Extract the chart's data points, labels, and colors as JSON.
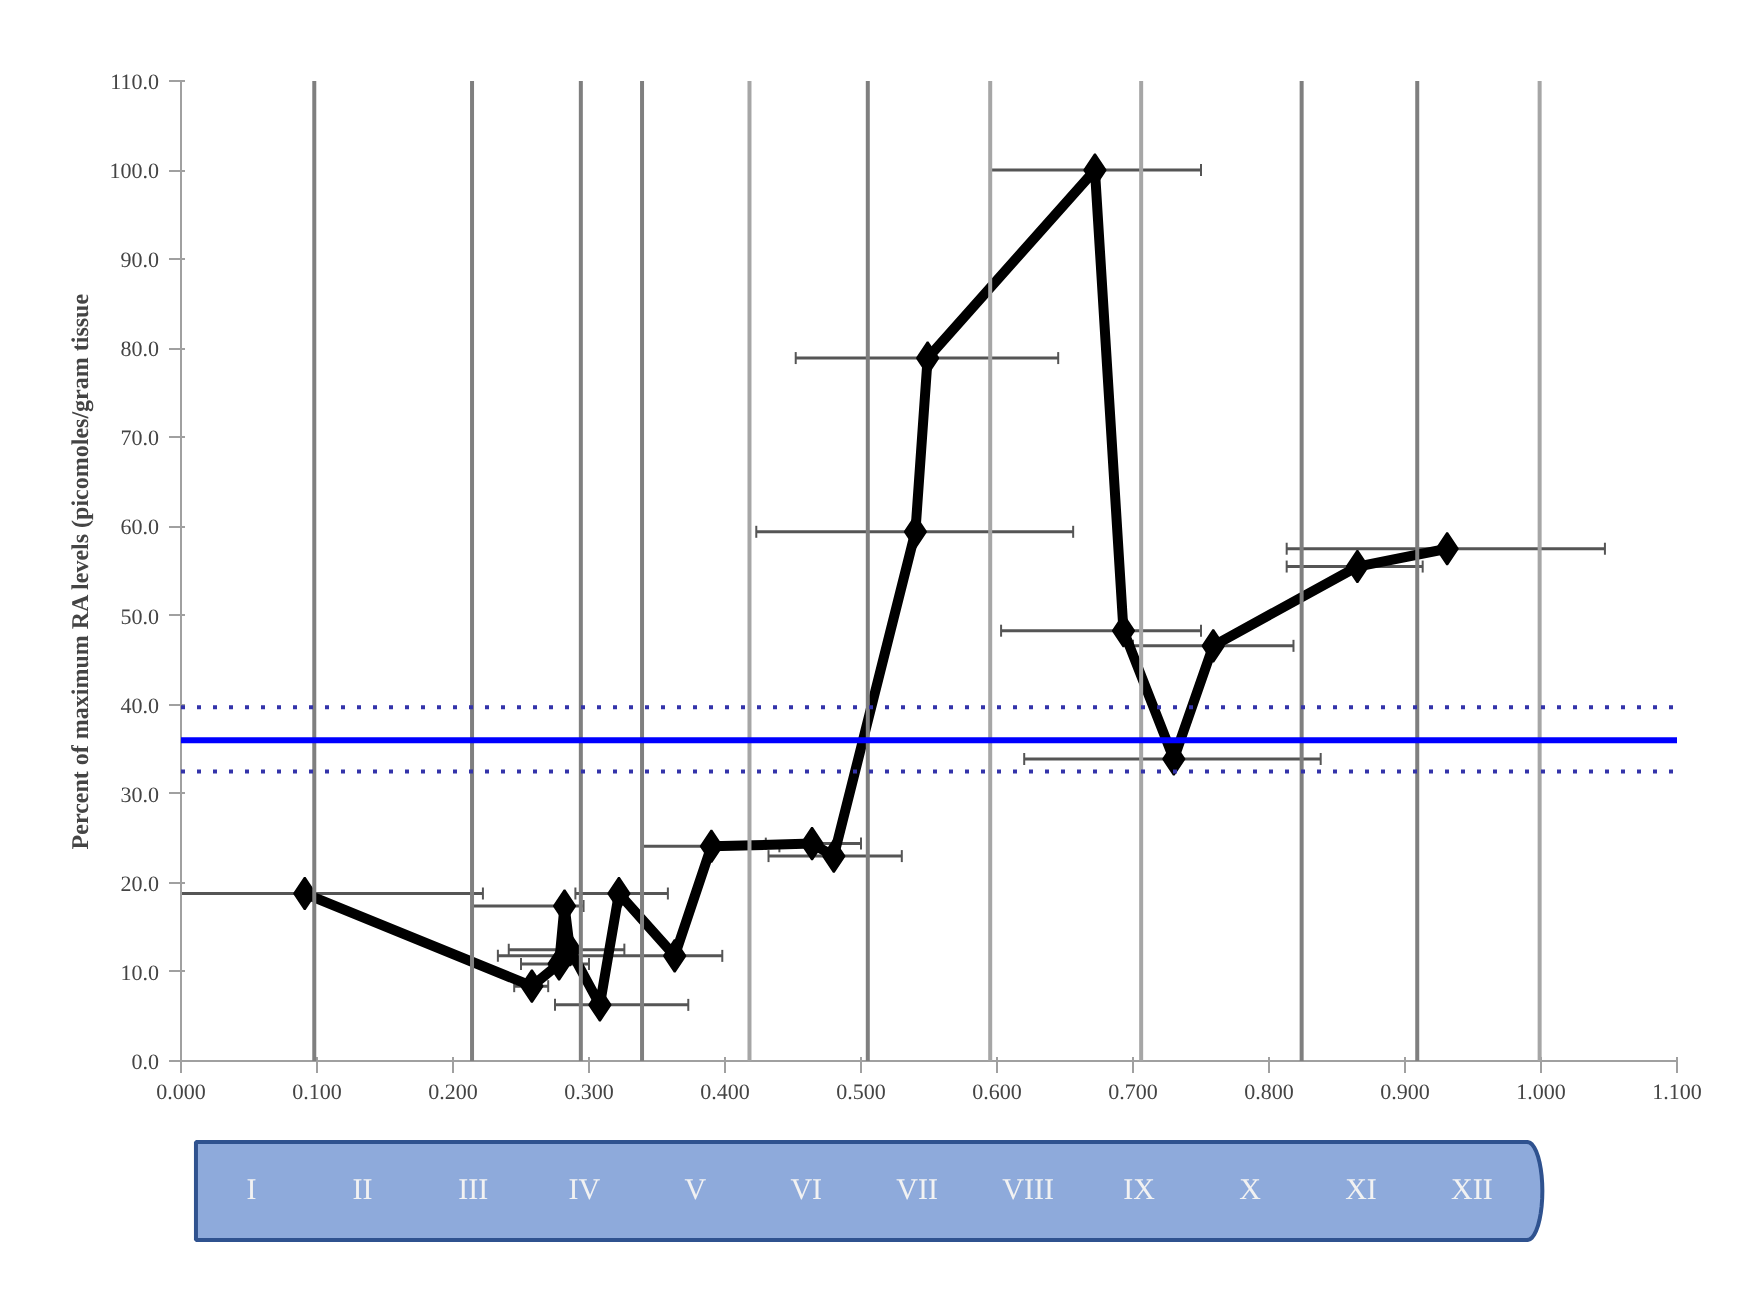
{
  "chart_data": {
    "type": "line",
    "ylabel": "Percent of maximum RA levels (picomoles/gram tissue",
    "x": [
      0.091,
      0.258,
      0.278,
      0.282,
      0.286,
      0.308,
      0.322,
      0.363,
      0.39,
      0.464,
      0.48,
      0.54,
      0.549,
      0.672,
      0.693,
      0.73,
      0.759,
      0.865,
      0.931
    ],
    "series": [
      {
        "color": "#000000",
        "values": [
          18.8,
          8.4,
          10.9,
          17.4,
          12.5,
          6.3,
          18.8,
          11.8,
          24.1,
          24.4,
          23.0,
          59.4,
          78.9,
          100.0,
          48.3,
          33.9,
          46.6,
          55.5,
          57.5
        ],
        "xerrors": [
          [
            0.0,
            0.222
          ],
          [
            0.245,
            0.27
          ],
          [
            0.25,
            0.3
          ],
          [
            0.214,
            0.296
          ],
          [
            0.241,
            0.326
          ],
          [
            0.275,
            0.373
          ],
          [
            0.29,
            0.358
          ],
          [
            0.233,
            0.398
          ],
          [
            0.339,
            0.44
          ],
          [
            0.43,
            0.5
          ],
          [
            0.432,
            0.53
          ],
          [
            0.423,
            0.656
          ],
          [
            0.452,
            0.645
          ],
          [
            0.595,
            0.75
          ],
          [
            0.603,
            0.75
          ],
          [
            0.62,
            0.838
          ],
          [
            0.7,
            0.818
          ],
          [
            0.813,
            0.913
          ],
          [
            0.813,
            1.047
          ]
        ]
      }
    ],
    "marker": "diamond",
    "line_style": "solid",
    "grid": false,
    "xlim": [
      0.0,
      1.1
    ],
    "ylim": [
      0.0,
      110.0
    ],
    "xticks": [
      {
        "value": 0.0,
        "label": "0.000"
      },
      {
        "value": 0.1,
        "label": "0.100"
      },
      {
        "value": 0.2,
        "label": "0.200"
      },
      {
        "value": 0.3,
        "label": "0.300"
      },
      {
        "value": 0.4,
        "label": "0.400"
      },
      {
        "value": 0.5,
        "label": "0.500"
      },
      {
        "value": 0.6,
        "label": "0.600"
      },
      {
        "value": 0.7,
        "label": "0.700"
      },
      {
        "value": 0.8,
        "label": "0.800"
      },
      {
        "value": 0.9,
        "label": "0.900"
      },
      {
        "value": 1.0,
        "label": "1.000"
      },
      {
        "value": 1.1,
        "label": "1.100"
      }
    ],
    "yticks": [
      {
        "value": 0,
        "label": "0.0"
      },
      {
        "value": 10,
        "label": "10.0"
      },
      {
        "value": 20,
        "label": "20.0"
      },
      {
        "value": 30,
        "label": "30.0"
      },
      {
        "value": 40,
        "label": "40.0"
      },
      {
        "value": 50,
        "label": "50.0"
      },
      {
        "value": 60,
        "label": "60.0"
      },
      {
        "value": 70,
        "label": "70.0"
      },
      {
        "value": 80,
        "label": "80.0"
      },
      {
        "value": 90,
        "label": "90.0"
      },
      {
        "value": 100,
        "label": "100.0"
      },
      {
        "value": 110,
        "label": "110.0"
      }
    ],
    "ref_lines": [
      {
        "axis": "x",
        "value": 0.098,
        "color": "#7f7f7f"
      },
      {
        "axis": "x",
        "value": 0.214,
        "color": "#7f7f7f"
      },
      {
        "axis": "x",
        "value": 0.294,
        "color": "#7f7f7f"
      },
      {
        "axis": "x",
        "value": 0.339,
        "color": "#7f7f7f"
      },
      {
        "axis": "x",
        "value": 0.418,
        "color": "#a6a6a6"
      },
      {
        "axis": "x",
        "value": 0.505,
        "color": "#7f7f7f"
      },
      {
        "axis": "x",
        "value": 0.595,
        "color": "#a6a6a6"
      },
      {
        "axis": "x",
        "value": 0.706,
        "color": "#a6a6a6"
      },
      {
        "axis": "x",
        "value": 0.824,
        "color": "#7f7f7f"
      },
      {
        "axis": "x",
        "value": 0.909,
        "color": "#7f7f7f"
      },
      {
        "axis": "x",
        "value": 0.999,
        "color": "#a6a6a6"
      },
      {
        "axis": "y",
        "value": 36.0,
        "color": "#0000ff",
        "line_style": "solid"
      },
      {
        "axis": "y",
        "value": 39.7,
        "color": "#3333aa",
        "line_style": "dotted"
      },
      {
        "axis": "y",
        "value": 32.5,
        "color": "#3333aa",
        "line_style": "dotted"
      }
    ],
    "annotations": [
      "I",
      "II",
      "III",
      "IV",
      "V",
      "VI",
      "VII",
      "VIII",
      "IX",
      "X",
      "XI",
      "XII"
    ]
  }
}
